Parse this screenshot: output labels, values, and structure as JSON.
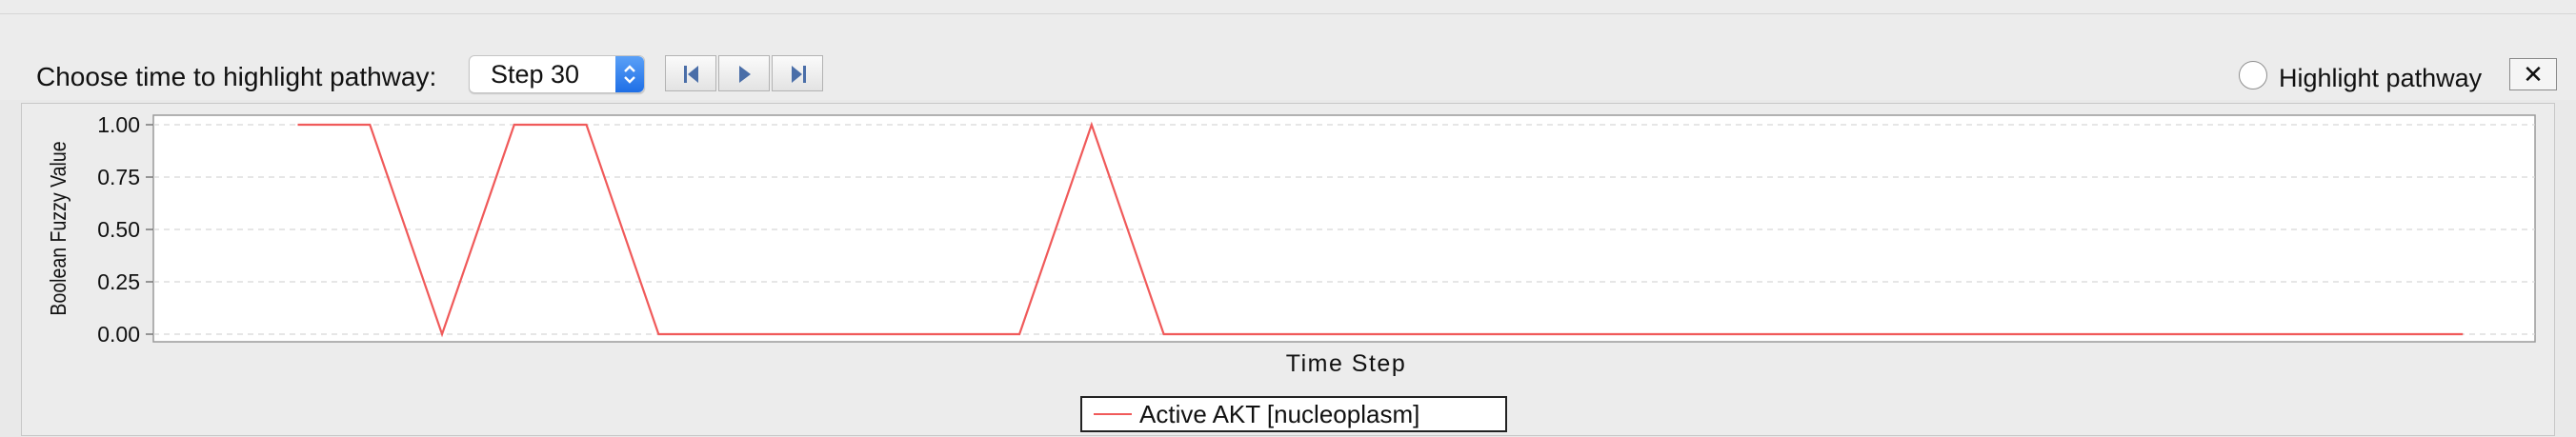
{
  "toolbar": {
    "choose_label": "Choose time to highlight pathway:",
    "step_value": "Step 30",
    "highlight_label": "Highlight pathway",
    "close_label": "✕"
  },
  "icons": {
    "first": "skip-back-icon",
    "play": "play-icon",
    "last": "skip-forward-icon",
    "close": "close-icon"
  },
  "colors": {
    "series": "#f05a5a",
    "accent": "#1f6fe6"
  },
  "chart_data": {
    "type": "line",
    "xlabel": "Time Step",
    "ylabel": "Boolean Fuzzy Value",
    "ylim": [
      0,
      1
    ],
    "xlim": [
      0,
      33
    ],
    "grid": true,
    "yticks": [
      "0.00",
      "0.25",
      "0.50",
      "0.75",
      "1.00"
    ],
    "legend_position": "bottom-center",
    "series": [
      {
        "name": "Active AKT [nucleoplasm]",
        "x": [
          2,
          3,
          4,
          5,
          6,
          7,
          8,
          9,
          10,
          11,
          12,
          13,
          14,
          15,
          16,
          17,
          18,
          19,
          20,
          21,
          22,
          23,
          24,
          25,
          26,
          27,
          28,
          29,
          30,
          31,
          32
        ],
        "values": [
          1,
          1,
          0,
          1,
          1,
          0,
          0,
          0,
          0,
          0,
          0,
          1,
          0,
          0,
          0,
          0,
          0,
          0,
          0,
          0,
          0,
          0,
          0,
          0,
          0,
          0,
          0,
          0,
          0,
          0,
          0
        ]
      }
    ]
  }
}
